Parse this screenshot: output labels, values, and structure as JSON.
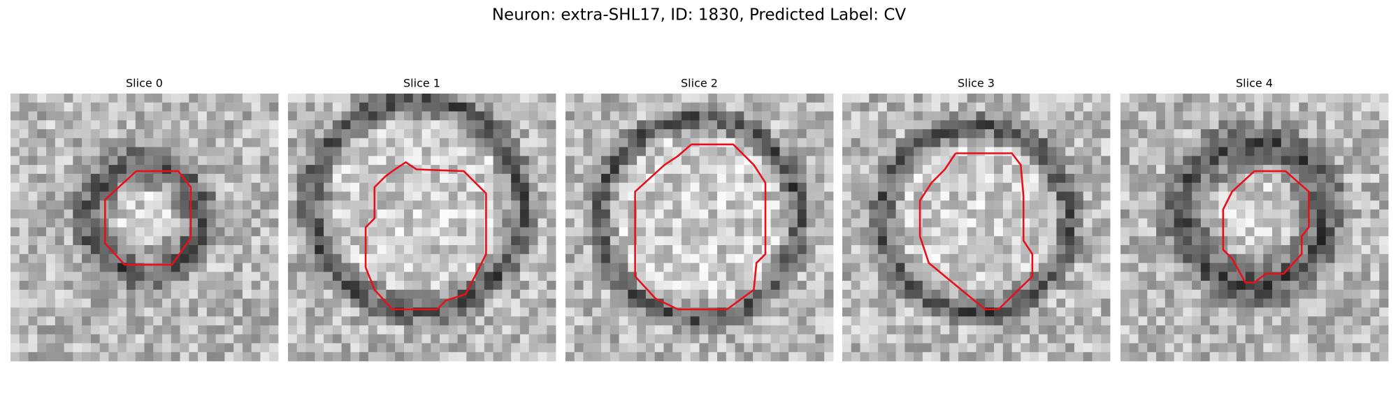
{
  "title": "Neuron: extra-SHL17, ID: 1830, Predicted Label: CV",
  "panels": [
    {
      "title": "Slice 0"
    },
    {
      "title": "Slice 1"
    },
    {
      "title": "Slice 2"
    },
    {
      "title": "Slice 3"
    },
    {
      "title": "Slice 4"
    }
  ]
}
